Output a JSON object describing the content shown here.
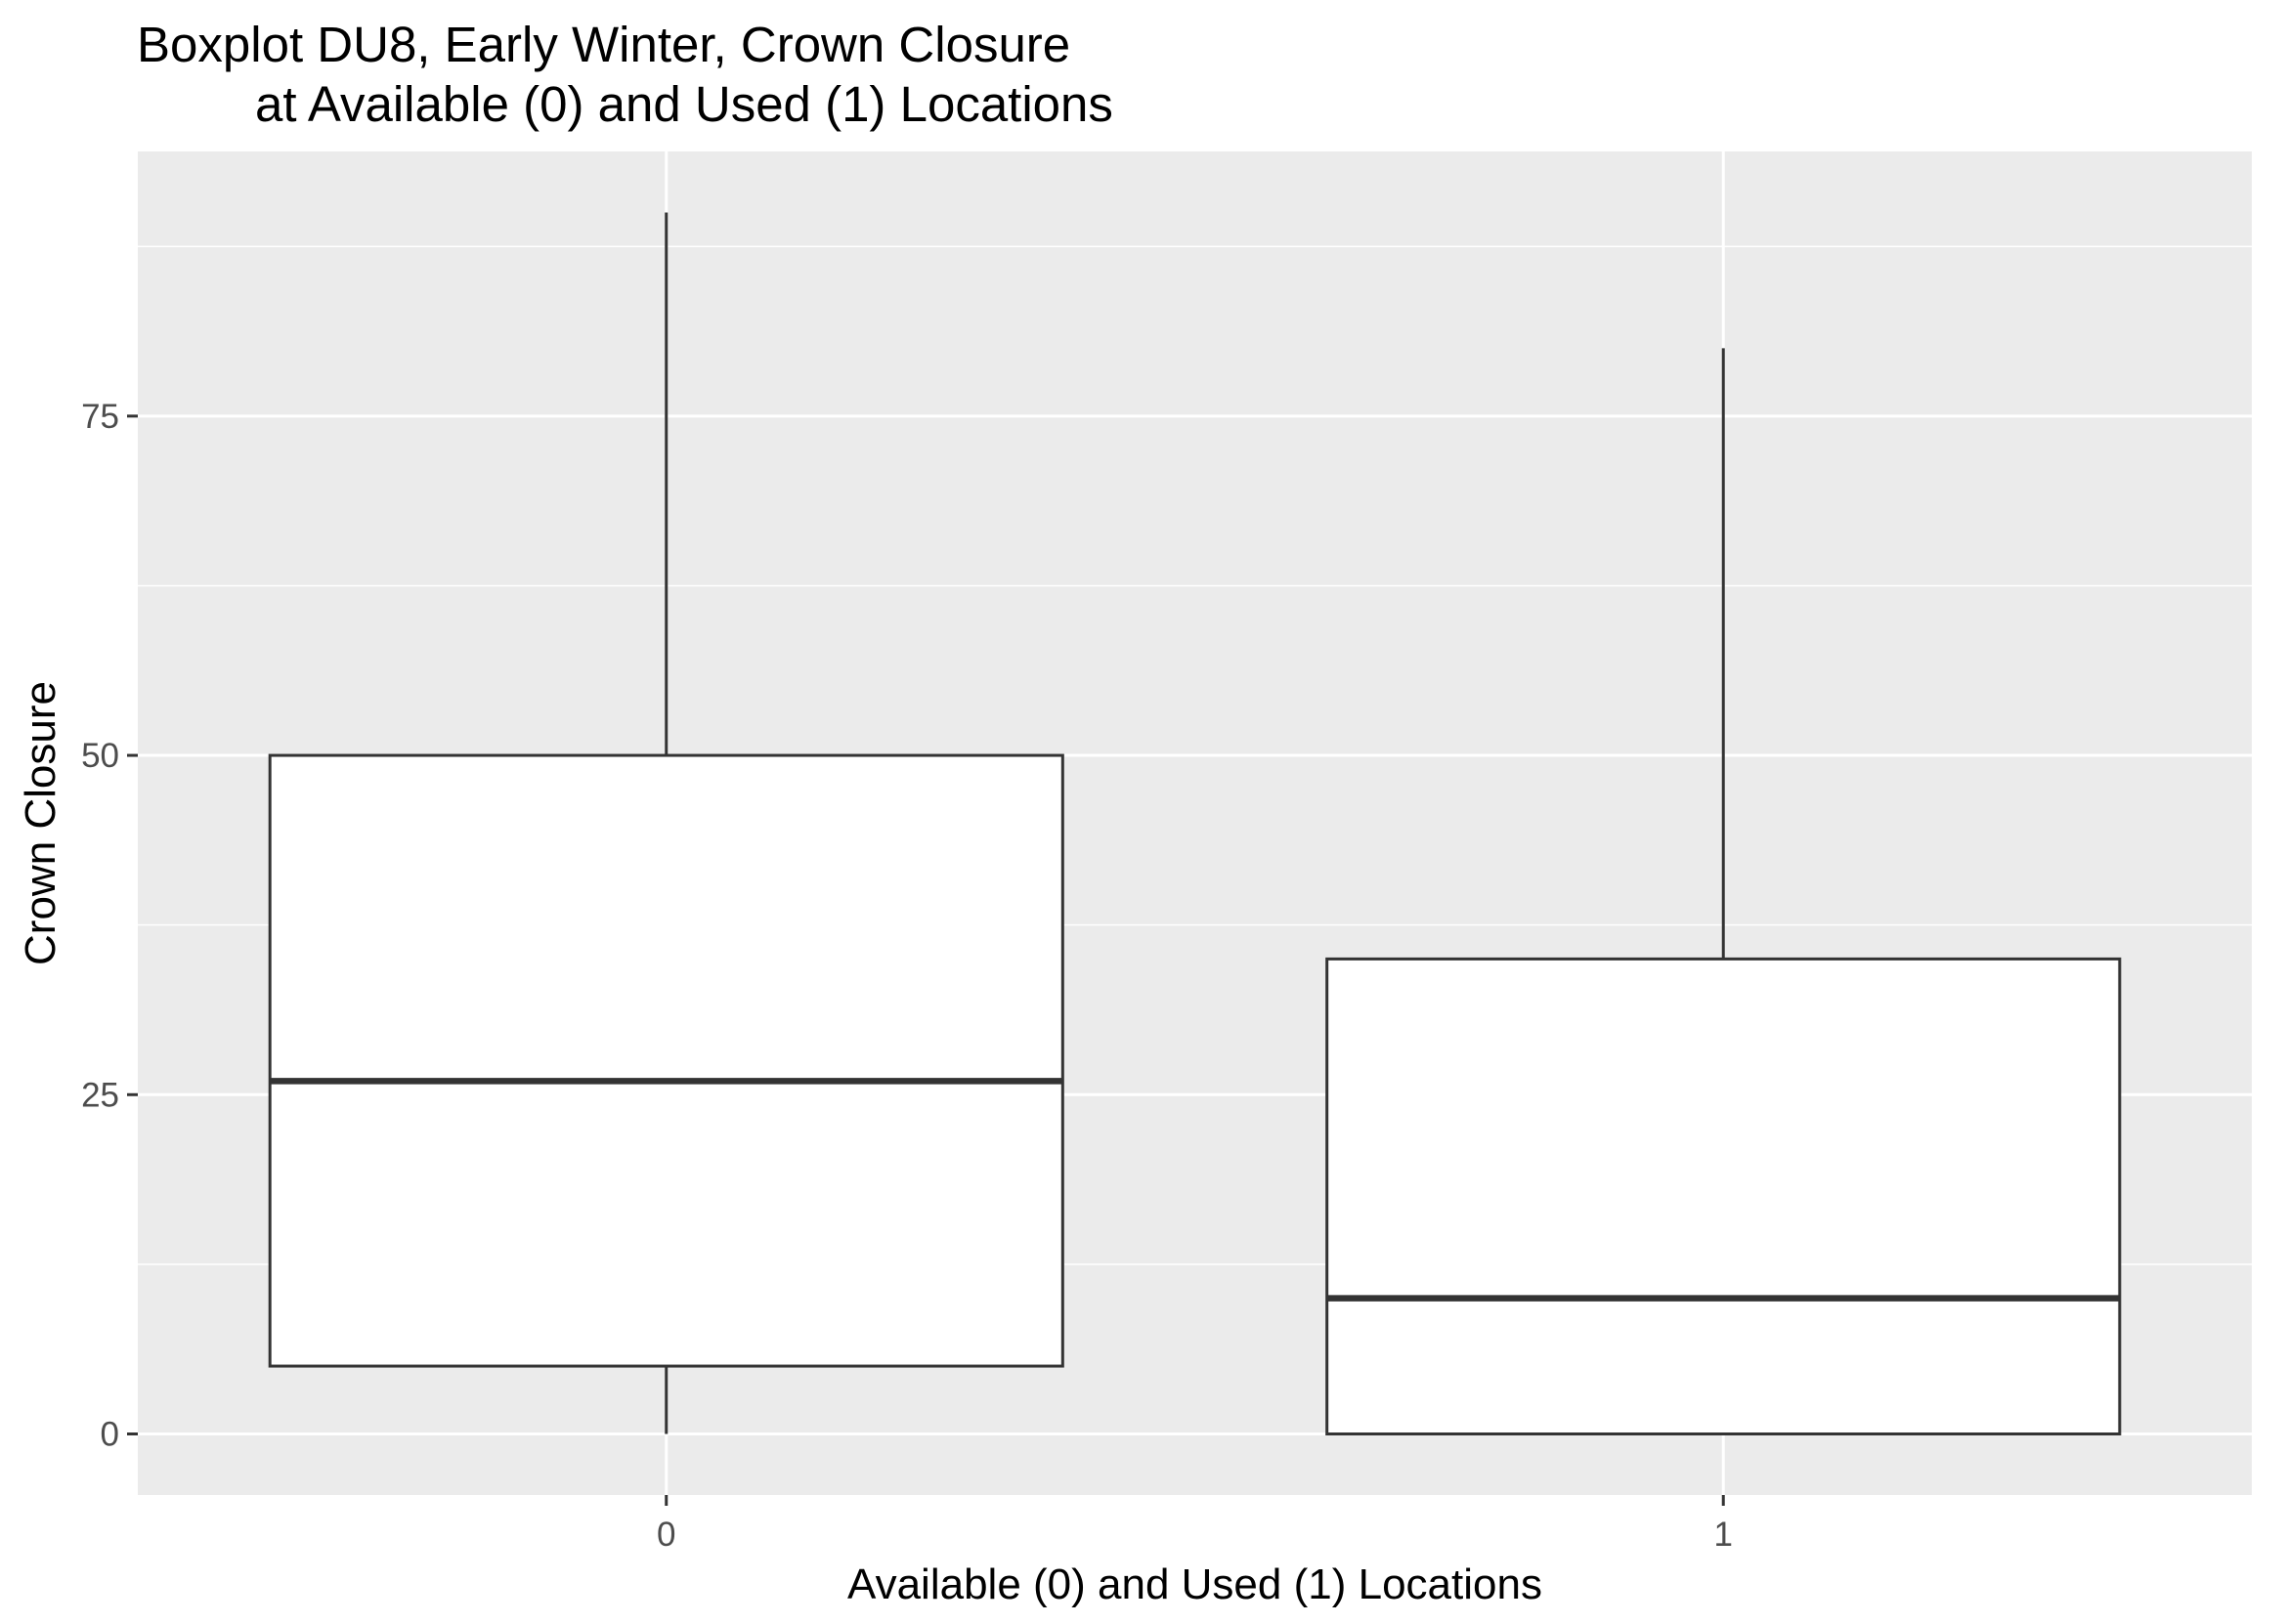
{
  "chart_data": {
    "type": "boxplot",
    "title_lines": [
      "Boxplot DU8, Early Winter, Crown Closure",
      "at Available (0) and Used (1) Locations"
    ],
    "xlabel": "Available (0) and Used (1) Locations",
    "ylabel": "Crown Closure",
    "categories": [
      "0",
      "1"
    ],
    "ylim": [
      -4.5,
      94.5
    ],
    "yticks": [
      0,
      25,
      50,
      75
    ],
    "ytick_labels": [
      "0",
      "25",
      "50",
      "75"
    ],
    "boxes": [
      {
        "category": "0",
        "min": 0,
        "q1": 5,
        "median": 26,
        "q3": 50,
        "max": 90
      },
      {
        "category": "1",
        "min": 0,
        "q1": 0,
        "median": 10,
        "q3": 35,
        "max": 80
      }
    ],
    "grid": true,
    "legend": "none",
    "colors": {
      "panel": "#ebebeb",
      "grid": "#ffffff",
      "box_fill": "#ffffff",
      "box_line": "#333333",
      "tick_text": "#4d4d4d"
    }
  }
}
